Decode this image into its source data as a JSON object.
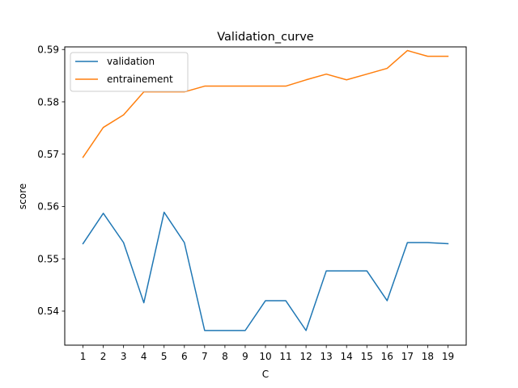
{
  "chart_data": {
    "type": "line",
    "title": "Validation_curve",
    "xlabel": "C",
    "ylabel": "score",
    "x": [
      1,
      2,
      3,
      4,
      5,
      6,
      7,
      8,
      9,
      10,
      11,
      12,
      13,
      14,
      15,
      16,
      17,
      18,
      19
    ],
    "xlim": [
      0.1,
      19.9
    ],
    "ylim": [
      0.5335,
      0.5905
    ],
    "yticks": [
      0.54,
      0.55,
      0.56,
      0.57,
      0.58,
      0.59
    ],
    "yticks_labels": [
      "0.54",
      "0.55",
      "0.56",
      "0.57",
      "0.58",
      "0.59"
    ],
    "grid": false,
    "legend_position": "top-left",
    "series": [
      {
        "name": "validation",
        "color": "#1f77b4",
        "values": [
          0.5529,
          0.5587,
          0.5531,
          0.5416,
          0.5589,
          0.5531,
          0.5363,
          0.5363,
          0.5363,
          0.542,
          0.542,
          0.5363,
          0.5477,
          0.5477,
          0.5477,
          0.542,
          0.5531,
          0.5531,
          0.5529
        ]
      },
      {
        "name": "entrainement",
        "color": "#ff7f0e",
        "values": [
          0.5694,
          0.5751,
          0.5775,
          0.5819,
          0.5819,
          0.5819,
          0.583,
          0.583,
          0.583,
          0.583,
          0.583,
          0.5842,
          0.5853,
          0.5842,
          0.5853,
          0.5864,
          0.5898,
          0.5887,
          0.5887
        ]
      }
    ]
  }
}
